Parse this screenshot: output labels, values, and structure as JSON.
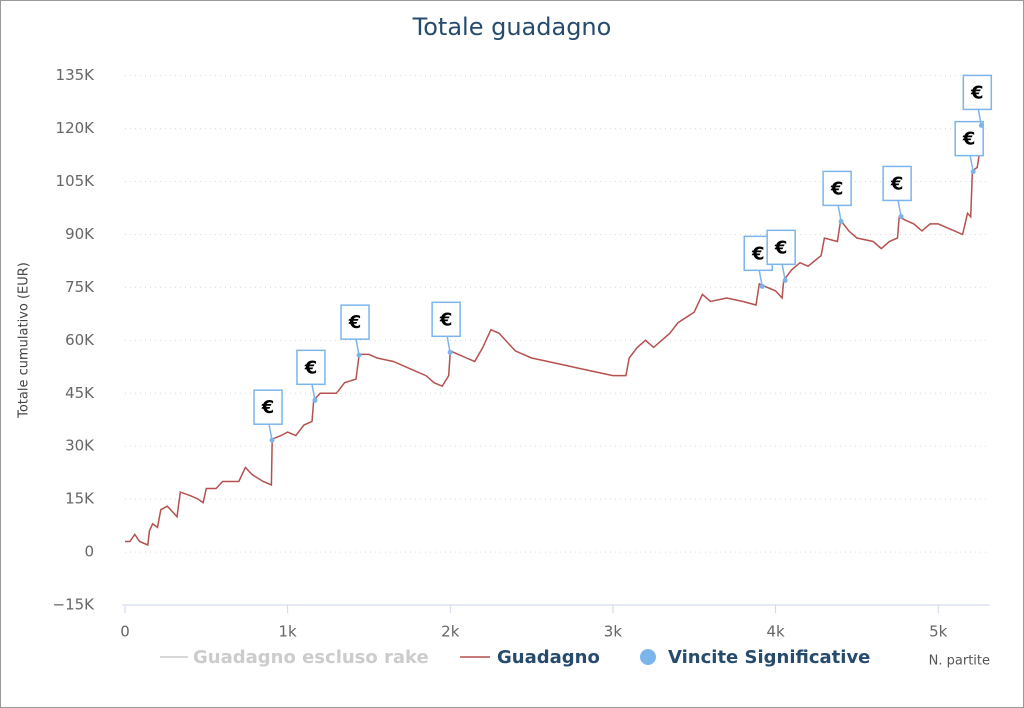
{
  "chart_data": {
    "type": "line",
    "title": "Totale guadagno",
    "y_label": "Totale cumulativo (EUR)",
    "x_label": "N. partite",
    "xlim": [
      0,
      5300
    ],
    "xticks": [
      0,
      {
        "value": 1000,
        "label": "1k"
      },
      {
        "value": 2000,
        "label": "2k"
      },
      {
        "value": 3000,
        "label": "3k"
      },
      {
        "value": 4000,
        "label": "4k"
      },
      {
        "value": 5000,
        "label": "5k"
      }
    ],
    "ylim": [
      -15000,
      140000
    ],
    "yticks": [
      {
        "value": -15000,
        "label": "−15K"
      },
      0,
      {
        "value": 15000,
        "label": "15K"
      },
      {
        "value": 30000,
        "label": "30K"
      },
      {
        "value": 45000,
        "label": "45K"
      },
      {
        "value": 60000,
        "label": "60K"
      },
      {
        "value": 75000,
        "label": "75K"
      },
      {
        "value": 90000,
        "label": "90K"
      },
      {
        "value": 105000,
        "label": "105K"
      },
      {
        "value": 120000,
        "label": "120K"
      },
      {
        "value": 135000,
        "label": "135K"
      }
    ],
    "grid": true,
    "series": [
      {
        "name": "Guadagno escluso rake",
        "color": "#cccccc",
        "visible": false
      },
      {
        "name": "Guadagno",
        "color": "#b5514f",
        "x": [
          0,
          30,
          60,
          90,
          140,
          150,
          170,
          200,
          220,
          260,
          300,
          320,
          340,
          400,
          450,
          480,
          500,
          560,
          600,
          650,
          700,
          740,
          780,
          850,
          900,
          905,
          960,
          1000,
          1050,
          1100,
          1150,
          1160,
          1200,
          1300,
          1350,
          1420,
          1440,
          1500,
          1550,
          1650,
          1750,
          1850,
          1900,
          1950,
          1990,
          2000,
          2050,
          2100,
          2150,
          2200,
          2250,
          2300,
          2400,
          2500,
          2600,
          2700,
          2800,
          2900,
          3000,
          3080,
          3100,
          3150,
          3200,
          3250,
          3300,
          3350,
          3400,
          3500,
          3550,
          3600,
          3700,
          3800,
          3880,
          3900,
          3950,
          4000,
          4040,
          4050,
          4100,
          4150,
          4200,
          4280,
          4300,
          4380,
          4400,
          4450,
          4500,
          4600,
          4650,
          4700,
          4750,
          4760,
          4800,
          4850,
          4900,
          4950,
          5000,
          5050,
          5100,
          5150,
          5180,
          5200,
          5210,
          5240,
          5250,
          5270
        ],
        "values": [
          3000,
          3000,
          5000,
          3000,
          2000,
          6000,
          8000,
          7000,
          12000,
          13000,
          11000,
          10000,
          17000,
          16000,
          15000,
          14000,
          18000,
          18000,
          20000,
          20000,
          20000,
          24000,
          22000,
          20000,
          19000,
          32000,
          33000,
          34000,
          33000,
          36000,
          37000,
          43000,
          45000,
          45000,
          48000,
          49000,
          56000,
          56000,
          55000,
          54000,
          52000,
          50000,
          48000,
          47000,
          50000,
          57000,
          56000,
          55000,
          54000,
          58000,
          63000,
          62000,
          57000,
          55000,
          54000,
          53000,
          52000,
          51000,
          50000,
          50000,
          55000,
          58000,
          60000,
          58000,
          60000,
          62000,
          65000,
          68000,
          73000,
          71000,
          72000,
          71000,
          70000,
          76000,
          75000,
          74000,
          72000,
          77000,
          80000,
          82000,
          81000,
          84000,
          89000,
          88000,
          94000,
          91000,
          89000,
          88000,
          86000,
          88000,
          89000,
          95000,
          94000,
          93000,
          91000,
          93000,
          93000,
          92000,
          91000,
          90000,
          96000,
          95000,
          108000,
          109000,
          112000,
          121000
        ]
      },
      {
        "name": "Vincite Significative",
        "type": "scatter",
        "color": "#7cb5ec",
        "marker_label": "€",
        "x": [
          904,
          1168,
          1439,
          1999,
          3918,
          4059,
          4403,
          4772,
          5215,
          5265
        ],
        "values": [
          31700,
          43000,
          55800,
          56600,
          75300,
          77000,
          93700,
          95100,
          107800,
          120900
        ]
      }
    ]
  }
}
